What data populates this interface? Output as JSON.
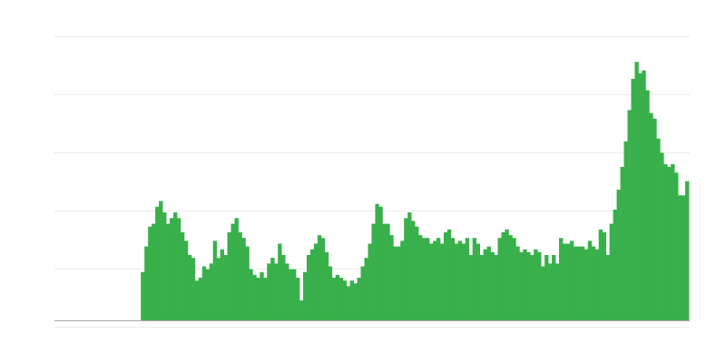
{
  "chart_data": {
    "type": "bar",
    "title": "",
    "xlabel": "",
    "ylabel": "",
    "ylim": [
      0,
      5
    ],
    "grid": true,
    "legend": "none",
    "bar_color": "#39b04b",
    "grid_color": "#ebebeb",
    "baseline_color": "#aaaaaa",
    "leading_empty_fraction": 0.136,
    "values": [
      0.85,
      1.3,
      1.65,
      1.7,
      2.0,
      2.1,
      1.9,
      1.7,
      1.8,
      1.9,
      1.8,
      1.55,
      1.4,
      1.15,
      1.1,
      0.7,
      0.75,
      0.95,
      0.9,
      1.0,
      1.4,
      1.1,
      1.25,
      1.15,
      1.55,
      1.7,
      1.8,
      1.55,
      1.45,
      1.3,
      0.9,
      0.8,
      0.75,
      0.85,
      0.75,
      1.0,
      1.1,
      1.0,
      1.35,
      1.15,
      1.0,
      0.9,
      0.9,
      0.75,
      0.35,
      0.85,
      1.15,
      1.25,
      1.35,
      1.5,
      1.45,
      1.2,
      0.95,
      0.75,
      0.8,
      0.75,
      0.7,
      0.6,
      0.7,
      0.65,
      0.75,
      0.95,
      1.1,
      1.35,
      1.7,
      2.05,
      2.0,
      1.7,
      1.7,
      1.5,
      1.3,
      1.3,
      1.4,
      1.8,
      1.9,
      1.75,
      1.65,
      1.5,
      1.45,
      1.45,
      1.35,
      1.4,
      1.45,
      1.35,
      1.55,
      1.6,
      1.45,
      1.35,
      1.4,
      1.35,
      1.45,
      1.15,
      1.45,
      1.35,
      1.15,
      1.25,
      1.3,
      1.2,
      1.15,
      1.45,
      1.55,
      1.6,
      1.5,
      1.45,
      1.3,
      1.2,
      1.25,
      1.2,
      1.15,
      1.25,
      1.2,
      0.95,
      1.15,
      1.0,
      1.15,
      1.0,
      1.45,
      1.35,
      1.35,
      1.4,
      1.3,
      1.3,
      1.3,
      1.25,
      1.4,
      1.3,
      1.25,
      1.6,
      1.55,
      1.15,
      1.7,
      1.95,
      2.3,
      2.7,
      3.15,
      3.7,
      4.25,
      4.55,
      4.35,
      4.4,
      4.05,
      3.65,
      3.55,
      3.2,
      2.95,
      2.75,
      2.7,
      2.75,
      2.6,
      2.2,
      2.2,
      2.45
    ]
  }
}
